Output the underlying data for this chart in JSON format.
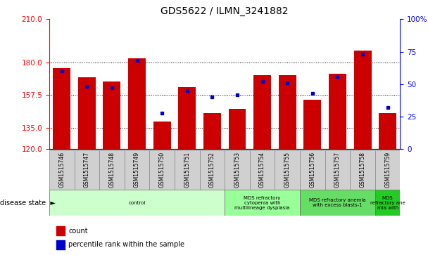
{
  "title": "GDS5622 / ILMN_3241882",
  "samples": [
    "GSM1515746",
    "GSM1515747",
    "GSM1515748",
    "GSM1515749",
    "GSM1515750",
    "GSM1515751",
    "GSM1515752",
    "GSM1515753",
    "GSM1515754",
    "GSM1515755",
    "GSM1515756",
    "GSM1515757",
    "GSM1515758",
    "GSM1515759"
  ],
  "counts": [
    176,
    170,
    167,
    183,
    139,
    163,
    145,
    148,
    171,
    171,
    154,
    172,
    188,
    145
  ],
  "percentiles": [
    60,
    48,
    47,
    68,
    28,
    45,
    40,
    42,
    52,
    51,
    43,
    56,
    73,
    32
  ],
  "ymin": 120,
  "ymax": 210,
  "yticks": [
    120,
    135,
    157.5,
    180,
    210
  ],
  "right_yticks": [
    0,
    25,
    50,
    75,
    100
  ],
  "bar_color": "#cc0000",
  "marker_color": "#0000cc",
  "disease_groups": [
    {
      "label": "control",
      "start": 0,
      "end": 7,
      "color": "#ccffcc"
    },
    {
      "label": "MDS refractory\ncytopenia with\nmultilineage dysplasia",
      "start": 7,
      "end": 10,
      "color": "#99ff99"
    },
    {
      "label": "MDS refractory anemia\nwith excess blasts-1",
      "start": 10,
      "end": 13,
      "color": "#66dd66"
    },
    {
      "label": "MDS\nrefractory ane\nmia with",
      "start": 13,
      "end": 14,
      "color": "#22cc22"
    }
  ],
  "legend_count_label": "count",
  "legend_percentile_label": "percentile rank within the sample",
  "disease_label": "disease state"
}
